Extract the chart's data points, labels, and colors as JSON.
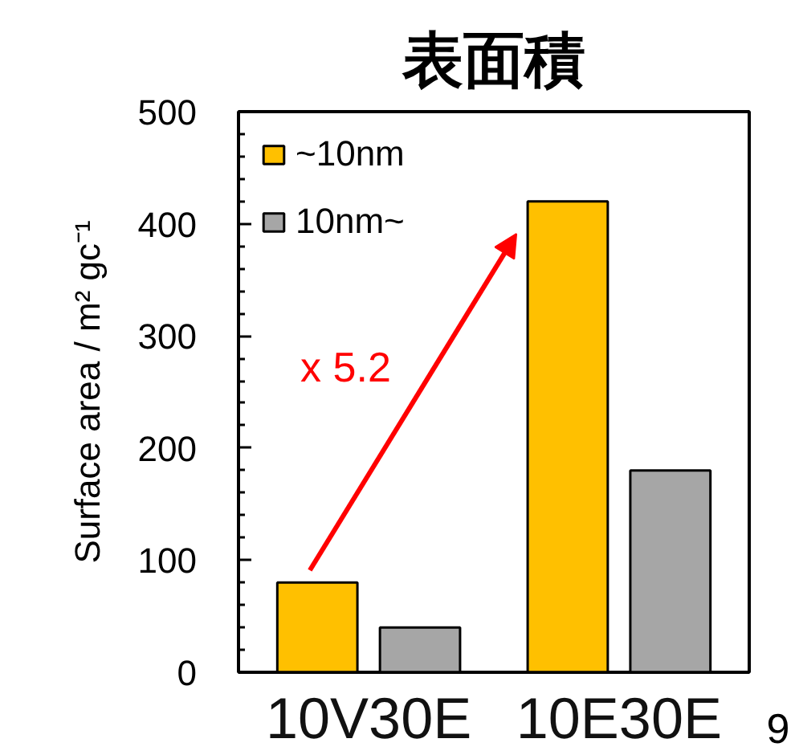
{
  "chart_data": {
    "type": "bar",
    "title": "表面積",
    "ylabel": "Surface area / m² gc⁻¹",
    "categories": [
      "10V30E",
      "10E30E"
    ],
    "series": [
      {
        "name": "~10nm",
        "color": "#ffc000",
        "values": [
          80,
          420
        ]
      },
      {
        "name": "10nm~",
        "color": "#a6a6a6",
        "values": [
          40,
          180
        ]
      }
    ],
    "ylim": [
      0,
      500
    ],
    "yticks": [
      0,
      {
        "value": 20,
        "label": null
      },
      {
        "value": 40,
        "label": null
      },
      {
        "value": 60,
        "label": null
      },
      {
        "value": 80,
        "label": null
      },
      100,
      {
        "value": 120,
        "label": null
      },
      {
        "value": 140,
        "label": null
      },
      {
        "value": 160,
        "label": null
      },
      {
        "value": 180,
        "label": null
      },
      200,
      {
        "value": 220,
        "label": null
      },
      {
        "value": 240,
        "label": null
      },
      {
        "value": 260,
        "label": null
      },
      {
        "value": 280,
        "label": null
      },
      300,
      {
        "value": 320,
        "label": null
      },
      {
        "value": 340,
        "label": null
      },
      {
        "value": 360,
        "label": null
      },
      {
        "value": 380,
        "label": null
      },
      400,
      {
        "value": 420,
        "label": null
      },
      {
        "value": 440,
        "label": null
      },
      {
        "value": 460,
        "label": null
      },
      {
        "value": 480,
        "label": null
      },
      500
    ],
    "grid": false,
    "legend": "top left",
    "annotations": [
      "x 5.2",
      "9"
    ]
  }
}
